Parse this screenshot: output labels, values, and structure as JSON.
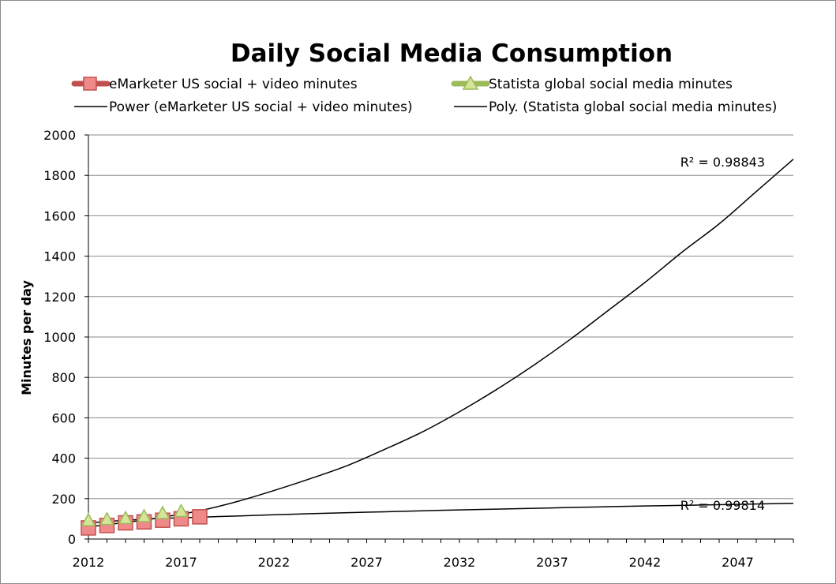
{
  "chart_data": {
    "type": "scatter",
    "title": "Daily Social Media Consumption",
    "xlabel": "",
    "ylabel": "Minutes per day",
    "xlim": [
      2012,
      2050
    ],
    "ylim": [
      0,
      2000
    ],
    "x_ticks": [
      2012,
      2017,
      2022,
      2027,
      2032,
      2037,
      2042,
      2047
    ],
    "y_ticks": [
      0,
      200,
      400,
      600,
      800,
      1000,
      1200,
      1400,
      1600,
      1800,
      2000
    ],
    "grid": "horizontal",
    "legend_position": "top",
    "series": [
      {
        "name": "eMarketer US social + video minutes",
        "color": "#e05050",
        "marker": "square",
        "x": [
          2012,
          2013,
          2014,
          2015,
          2016,
          2017,
          2018
        ],
        "y": [
          55,
          67,
          80,
          85,
          93,
          100,
          110
        ]
      },
      {
        "name": "Statista global social media minutes",
        "color": "#9bbb59",
        "marker": "triangle",
        "x": [
          2012,
          2013,
          2014,
          2015,
          2016,
          2017
        ],
        "y": [
          90,
          95,
          100,
          110,
          125,
          135
        ]
      }
    ],
    "trendlines": [
      {
        "name": "Power (eMarketer US social + video minutes)",
        "color": "#000000",
        "r2_label": "R² = 0.98843",
        "x": [
          2012,
          2014,
          2016,
          2018,
          2020,
          2022,
          2024,
          2026,
          2028,
          2030,
          2032,
          2034,
          2036,
          2038,
          2040,
          2042,
          2044,
          2046,
          2048,
          2050
        ],
        "y": [
          60,
          82,
          108,
          140,
          185,
          240,
          300,
          365,
          445,
          530,
          630,
          740,
          860,
          990,
          1130,
          1270,
          1420,
          1560,
          1720,
          1880
        ]
      },
      {
        "name": "Poly. (Statista global social media minutes)",
        "color": "#000000",
        "r2_label": "R² = 0.99814",
        "x": [
          2012,
          2014,
          2016,
          2018,
          2020,
          2022,
          2025,
          2028,
          2031,
          2034,
          2037,
          2040,
          2043,
          2046,
          2050
        ],
        "y": [
          80,
          93,
          102,
          108,
          114,
          120,
          128,
          135,
          142,
          148,
          154,
          160,
          165,
          170,
          177
        ]
      }
    ]
  }
}
